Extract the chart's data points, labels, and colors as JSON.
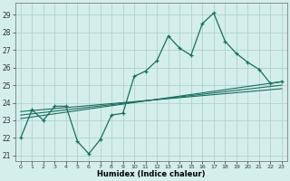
{
  "xlabel": "Humidex (Indice chaleur)",
  "ylabel": "",
  "bg_color": "#d4eeec",
  "grid_color": "#aed4d0",
  "line_color": "#1a6e60",
  "xlim": [
    -0.5,
    23.5
  ],
  "ylim": [
    20.7,
    29.7
  ],
  "yticks": [
    21,
    22,
    23,
    24,
    25,
    26,
    27,
    28,
    29
  ],
  "xticks": [
    0,
    1,
    2,
    3,
    4,
    5,
    6,
    7,
    8,
    9,
    10,
    11,
    12,
    13,
    14,
    15,
    16,
    17,
    18,
    19,
    20,
    21,
    22,
    23
  ],
  "series1_x": [
    0,
    1,
    2,
    3,
    4,
    5,
    6,
    7,
    8,
    9,
    10,
    11,
    12,
    13,
    14,
    15,
    16,
    17,
    18,
    19,
    20,
    21,
    22,
    23
  ],
  "series1_y": [
    22.0,
    23.6,
    23.0,
    23.8,
    23.8,
    21.8,
    21.1,
    21.9,
    23.3,
    23.4,
    25.5,
    25.8,
    26.4,
    27.8,
    27.1,
    26.7,
    28.5,
    29.1,
    27.5,
    26.8,
    26.3,
    25.9,
    25.1,
    25.2
  ],
  "trend1_x": [
    0,
    23
  ],
  "trend1_y": [
    23.1,
    25.2
  ],
  "trend2_x": [
    0,
    23
  ],
  "trend2_y": [
    23.3,
    25.0
  ],
  "trend3_x": [
    0,
    23
  ],
  "trend3_y": [
    23.5,
    24.8
  ]
}
